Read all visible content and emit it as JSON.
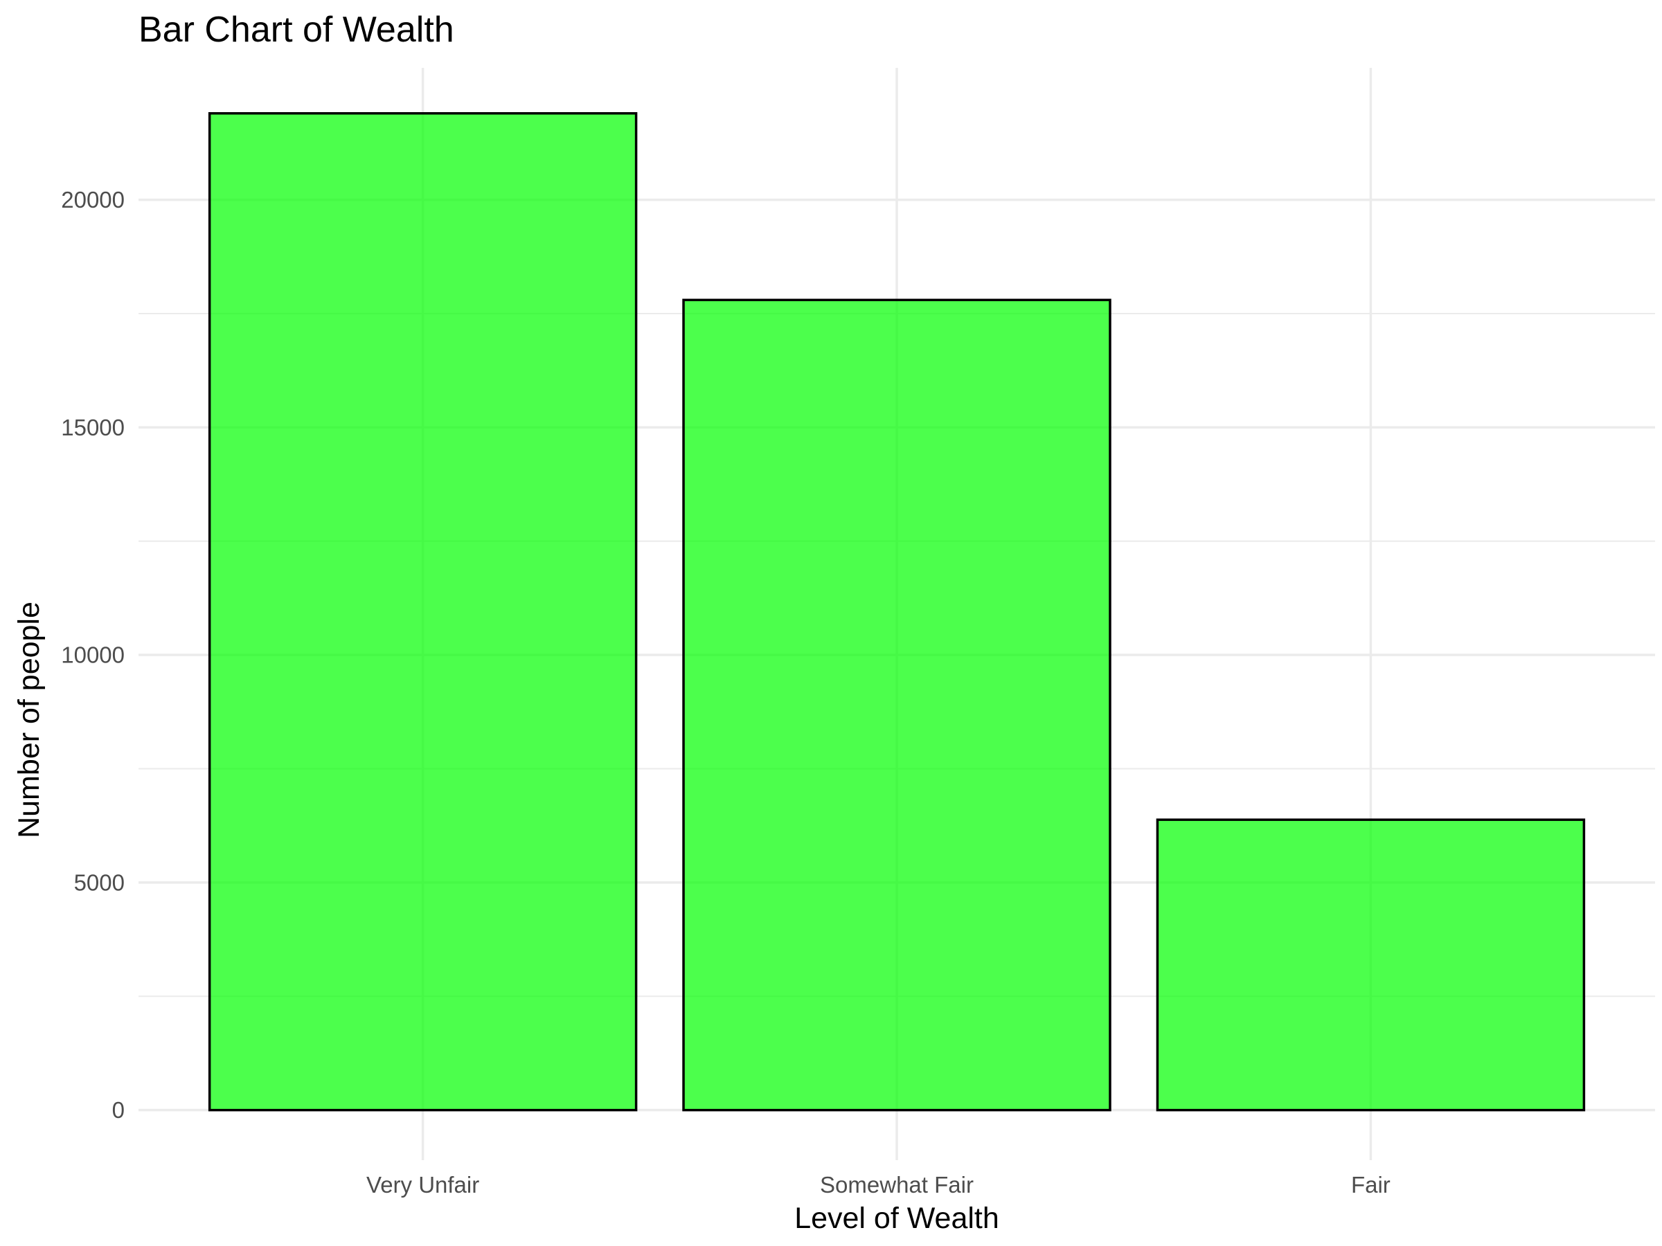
{
  "chart_data": {
    "type": "bar",
    "title": "Bar Chart of Wealth",
    "xlabel": "Level of Wealth",
    "ylabel": "Number of people",
    "categories": [
      "Very Unfair",
      "Somewhat Fair",
      "Fair"
    ],
    "values": [
      21900,
      17800,
      6380
    ],
    "ylim": [
      -1100,
      22900
    ],
    "yticks": [
      0,
      5000,
      10000,
      15000,
      20000
    ],
    "yticks_minor": [
      2500,
      7500,
      12500,
      17500
    ],
    "grid": true,
    "legend": "none",
    "bar_color": "#00ff00",
    "bar_outline": "#000000"
  }
}
